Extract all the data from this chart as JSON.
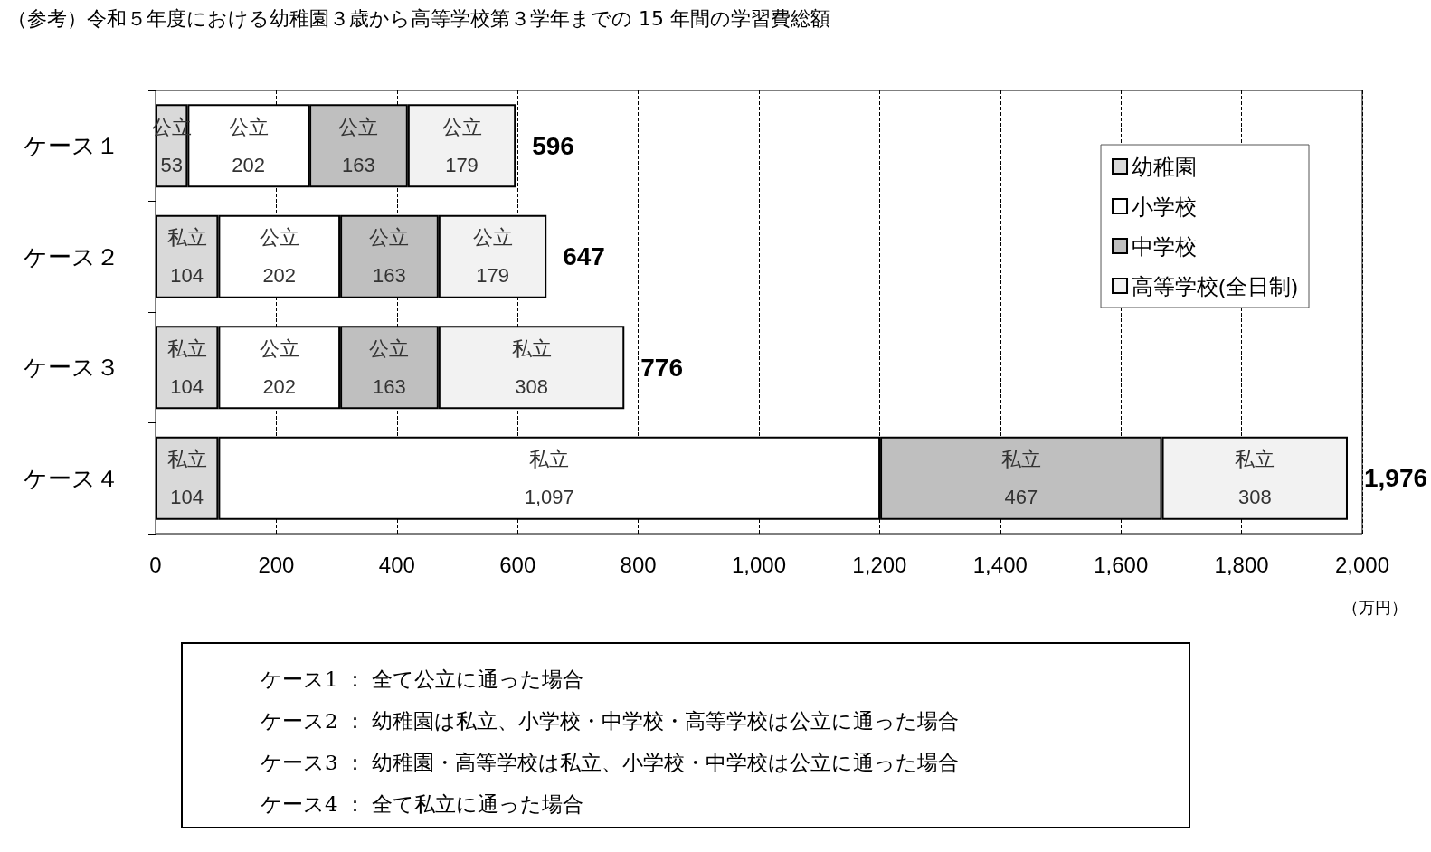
{
  "chart_data": {
    "type": "bar",
    "orientation": "horizontal",
    "stacked": true,
    "title": "（参考）令和５年度における幼稚園３歳から高等学校第３学年までの 15 年間の学習費総額",
    "xlabel": "（万円）",
    "categories": [
      "ケース１",
      "ケース２",
      "ケース３",
      "ケース４"
    ],
    "series": [
      {
        "name": "幼稚園",
        "color": "#d9d9d9",
        "values": [
          53,
          104,
          104,
          104
        ],
        "value_labels": [
          "公立\n53",
          "私立\n104",
          "私立\n104",
          "私立\n104"
        ]
      },
      {
        "name": "小学校",
        "color": "#ffffff",
        "values": [
          202,
          202,
          202,
          1097
        ],
        "value_labels": [
          "公立\n202",
          "公立\n202",
          "公立\n202",
          "私立\n1,097"
        ]
      },
      {
        "name": "中学校",
        "color": "#bfbfbf",
        "values": [
          163,
          163,
          163,
          467
        ],
        "value_labels": [
          "公立\n163",
          "公立\n163",
          "公立\n163",
          "私立\n467"
        ]
      },
      {
        "name": "高等学校(全日制)",
        "color": "#f2f2f2",
        "values": [
          179,
          179,
          308,
          308
        ],
        "value_labels": [
          "公立\n179",
          "公立\n179",
          "私立\n308",
          "私立\n308"
        ]
      }
    ],
    "totals": [
      "596",
      "647",
      "776",
      "1,976"
    ],
    "xlim": [
      0,
      2000
    ],
    "xticks": [
      0,
      200,
      400,
      600,
      800,
      {
        "value": 1000,
        "label": "1,000"
      },
      {
        "value": 1200,
        "label": "1,200"
      },
      {
        "value": 1400,
        "label": "1,400"
      },
      {
        "value": 1600,
        "label": "1,600"
      },
      {
        "value": 1800,
        "label": "1,800"
      },
      {
        "value": 2000,
        "label": "2,000"
      }
    ],
    "grid": "x",
    "legend": "top right",
    "annotations": [
      "ケース1 ： 全て公立に通った場合",
      "ケース2 ： 幼稚園は私立、小学校・中学校・高等学校は公立に通った場合",
      "ケース3 ： 幼稚園・高等学校は私立、小学校・中学校は公立に通った場合",
      "ケース4 ： 全て私立に通った場合"
    ]
  }
}
